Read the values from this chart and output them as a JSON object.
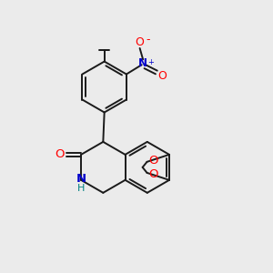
{
  "background_color": "#ebebeb",
  "bond_color": "#1a1a1a",
  "atom_colors": {
    "O": "#ff0000",
    "N": "#0000cc",
    "H": "#008080"
  },
  "figsize": [
    3.0,
    3.0
  ],
  "dpi": 100,
  "lw": 1.4
}
